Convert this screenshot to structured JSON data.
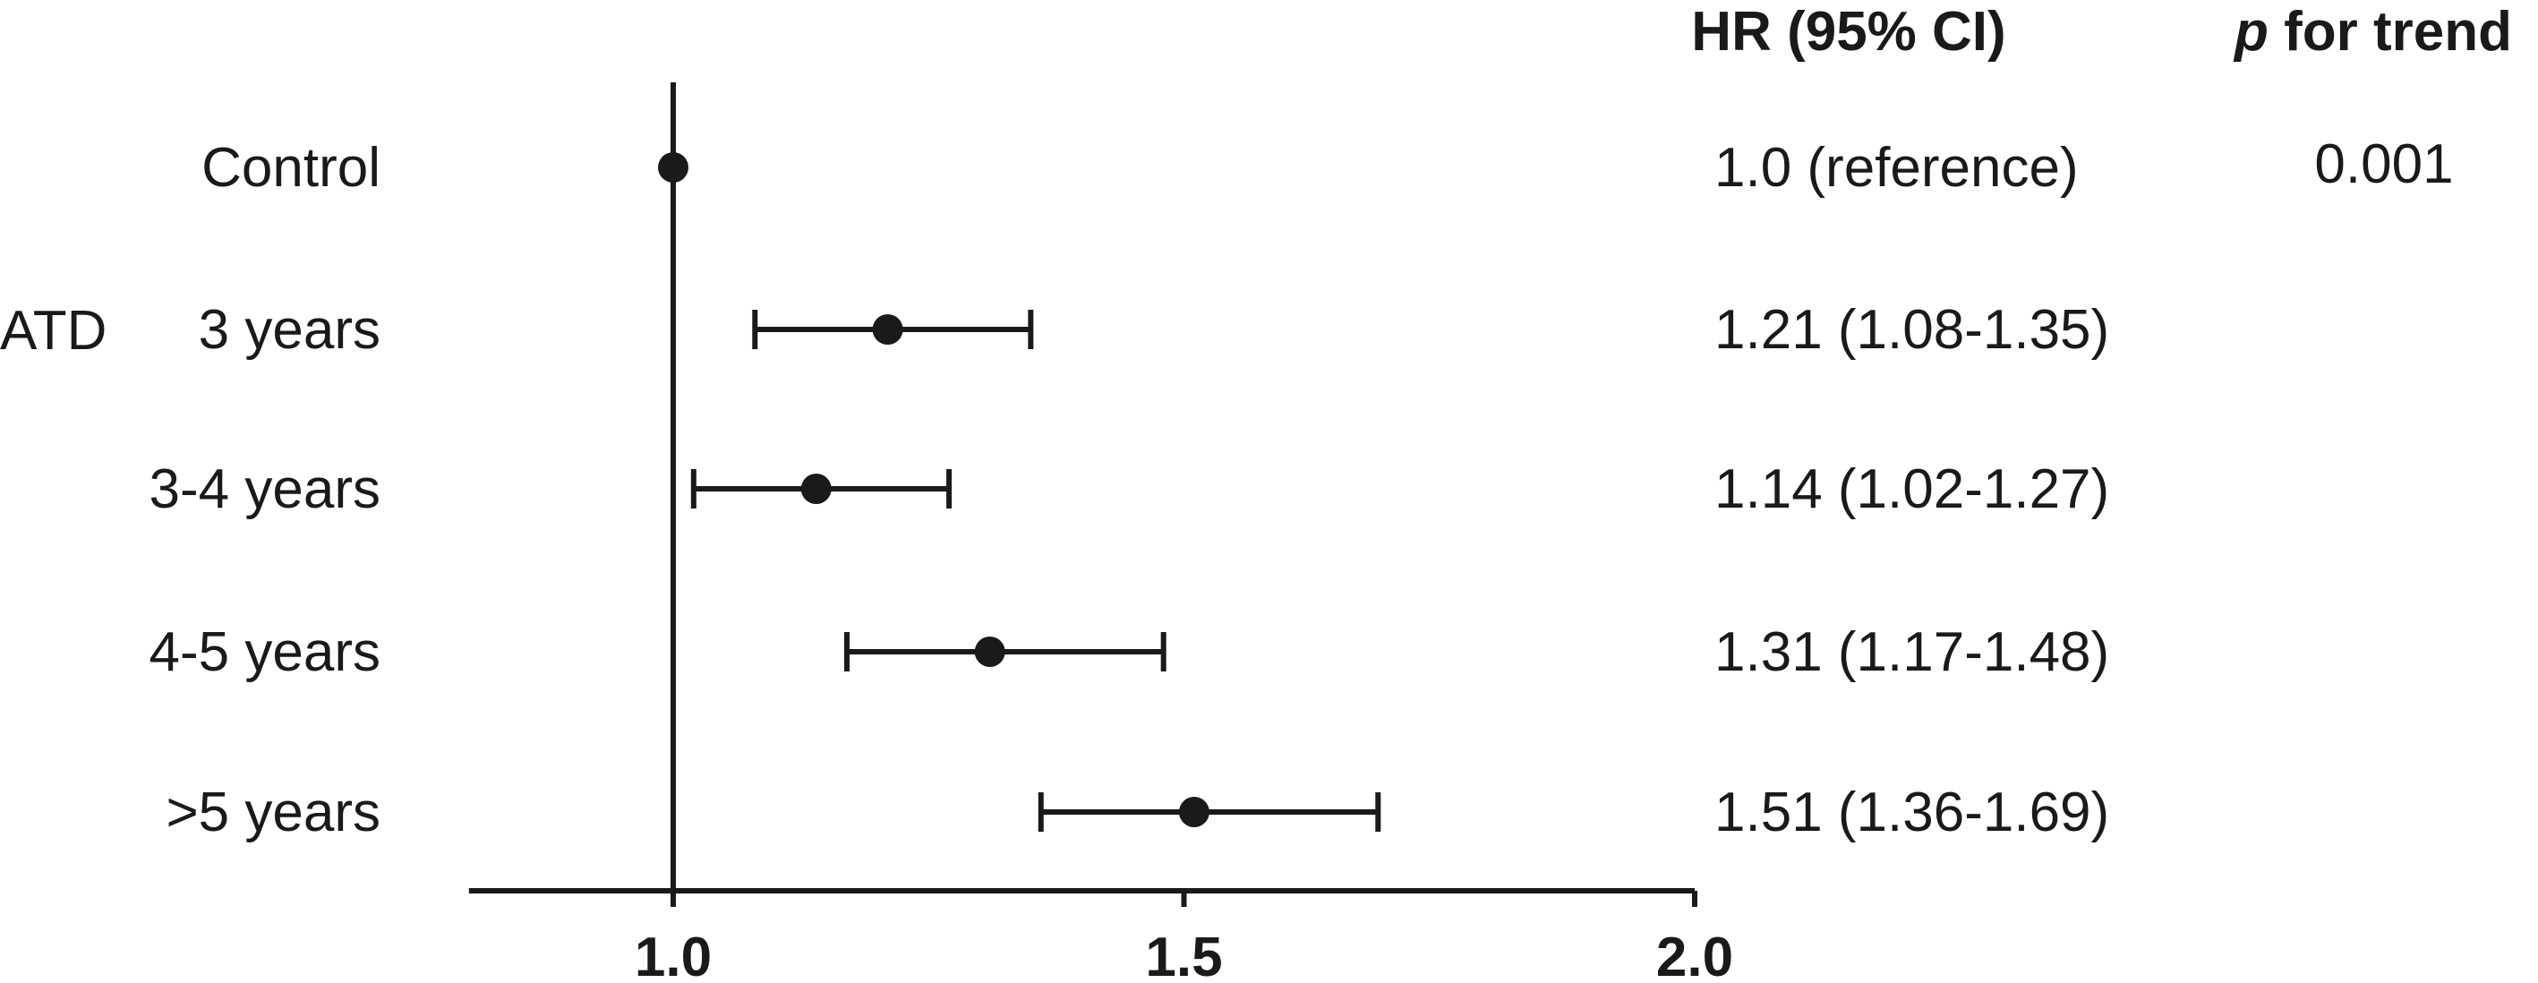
{
  "chart_data": {
    "type": "forest",
    "columns": {
      "hr_header": "HR (95% CI)",
      "p_header_italic": "p",
      "p_header_rest": " for trend"
    },
    "group_label": "ATD",
    "rows": [
      {
        "label": "Control",
        "hr": 1.0,
        "lower": null,
        "upper": null,
        "hr_text": "1.0 (reference)"
      },
      {
        "label": "3 years",
        "hr": 1.21,
        "lower": 1.08,
        "upper": 1.35,
        "hr_text": "1.21 (1.08-1.35)"
      },
      {
        "label": "3-4 years",
        "hr": 1.14,
        "lower": 1.02,
        "upper": 1.27,
        "hr_text": "1.14 (1.02-1.27)"
      },
      {
        "label": "4-5 years",
        "hr": 1.31,
        "lower": 1.17,
        "upper": 1.48,
        "hr_text": "1.31 (1.17-1.48)"
      },
      {
        "label": ">5 years",
        "hr": 1.51,
        "lower": 1.36,
        "upper": 1.69,
        "hr_text": "1.51 (1.36-1.69)"
      }
    ],
    "p_trend": "0.001",
    "x_ticks": [
      "1.0",
      "1.5",
      "2.0"
    ],
    "x_tick_values": [
      1.0,
      1.5,
      2.0
    ],
    "xlim": [
      0.8,
      2.0
    ],
    "reference_value": 1.0
  },
  "colors": {
    "ink": "#1a1a1a",
    "marker": "#1a1a1a"
  }
}
